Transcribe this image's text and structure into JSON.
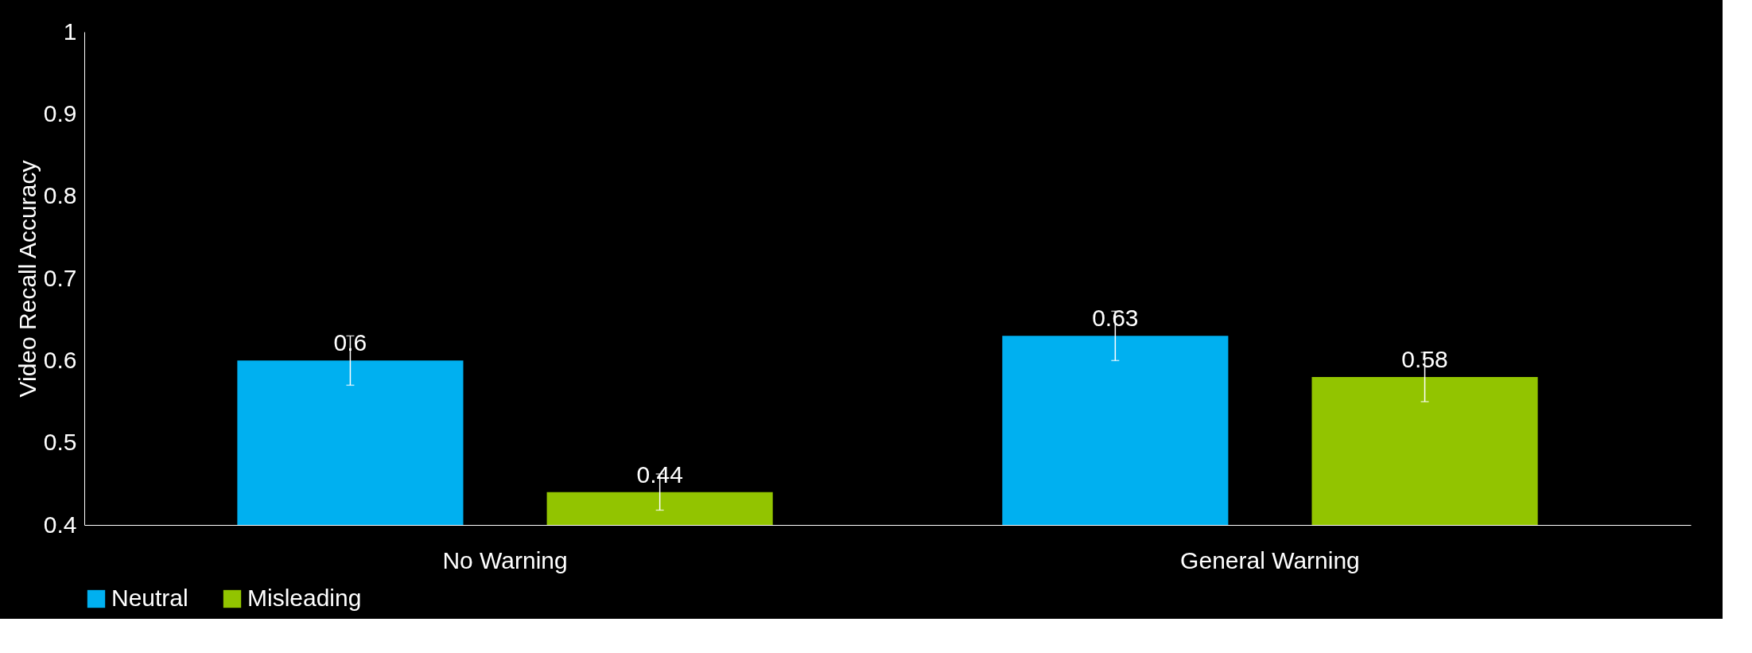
{
  "chart_data": {
    "type": "bar",
    "ylabel": "Video Recall Accuracy",
    "categories": [
      "No Warning",
      "General Warning"
    ],
    "series": [
      {
        "name": "Neutral",
        "color": "#00b0f0",
        "values": [
          0.6,
          0.63
        ],
        "errors": [
          0.03,
          0.03
        ]
      },
      {
        "name": "Misleading",
        "color": "#92c400",
        "values": [
          0.44,
          0.58
        ],
        "errors": [
          0.022,
          0.03
        ]
      }
    ],
    "ylim": [
      0.4,
      1
    ],
    "yticks": [
      0.4,
      0.5,
      0.6,
      0.7,
      0.8,
      0.9,
      {
        "value": 1,
        "label": "1"
      }
    ],
    "data_labels": true,
    "legend": "bottom",
    "grid": false
  }
}
